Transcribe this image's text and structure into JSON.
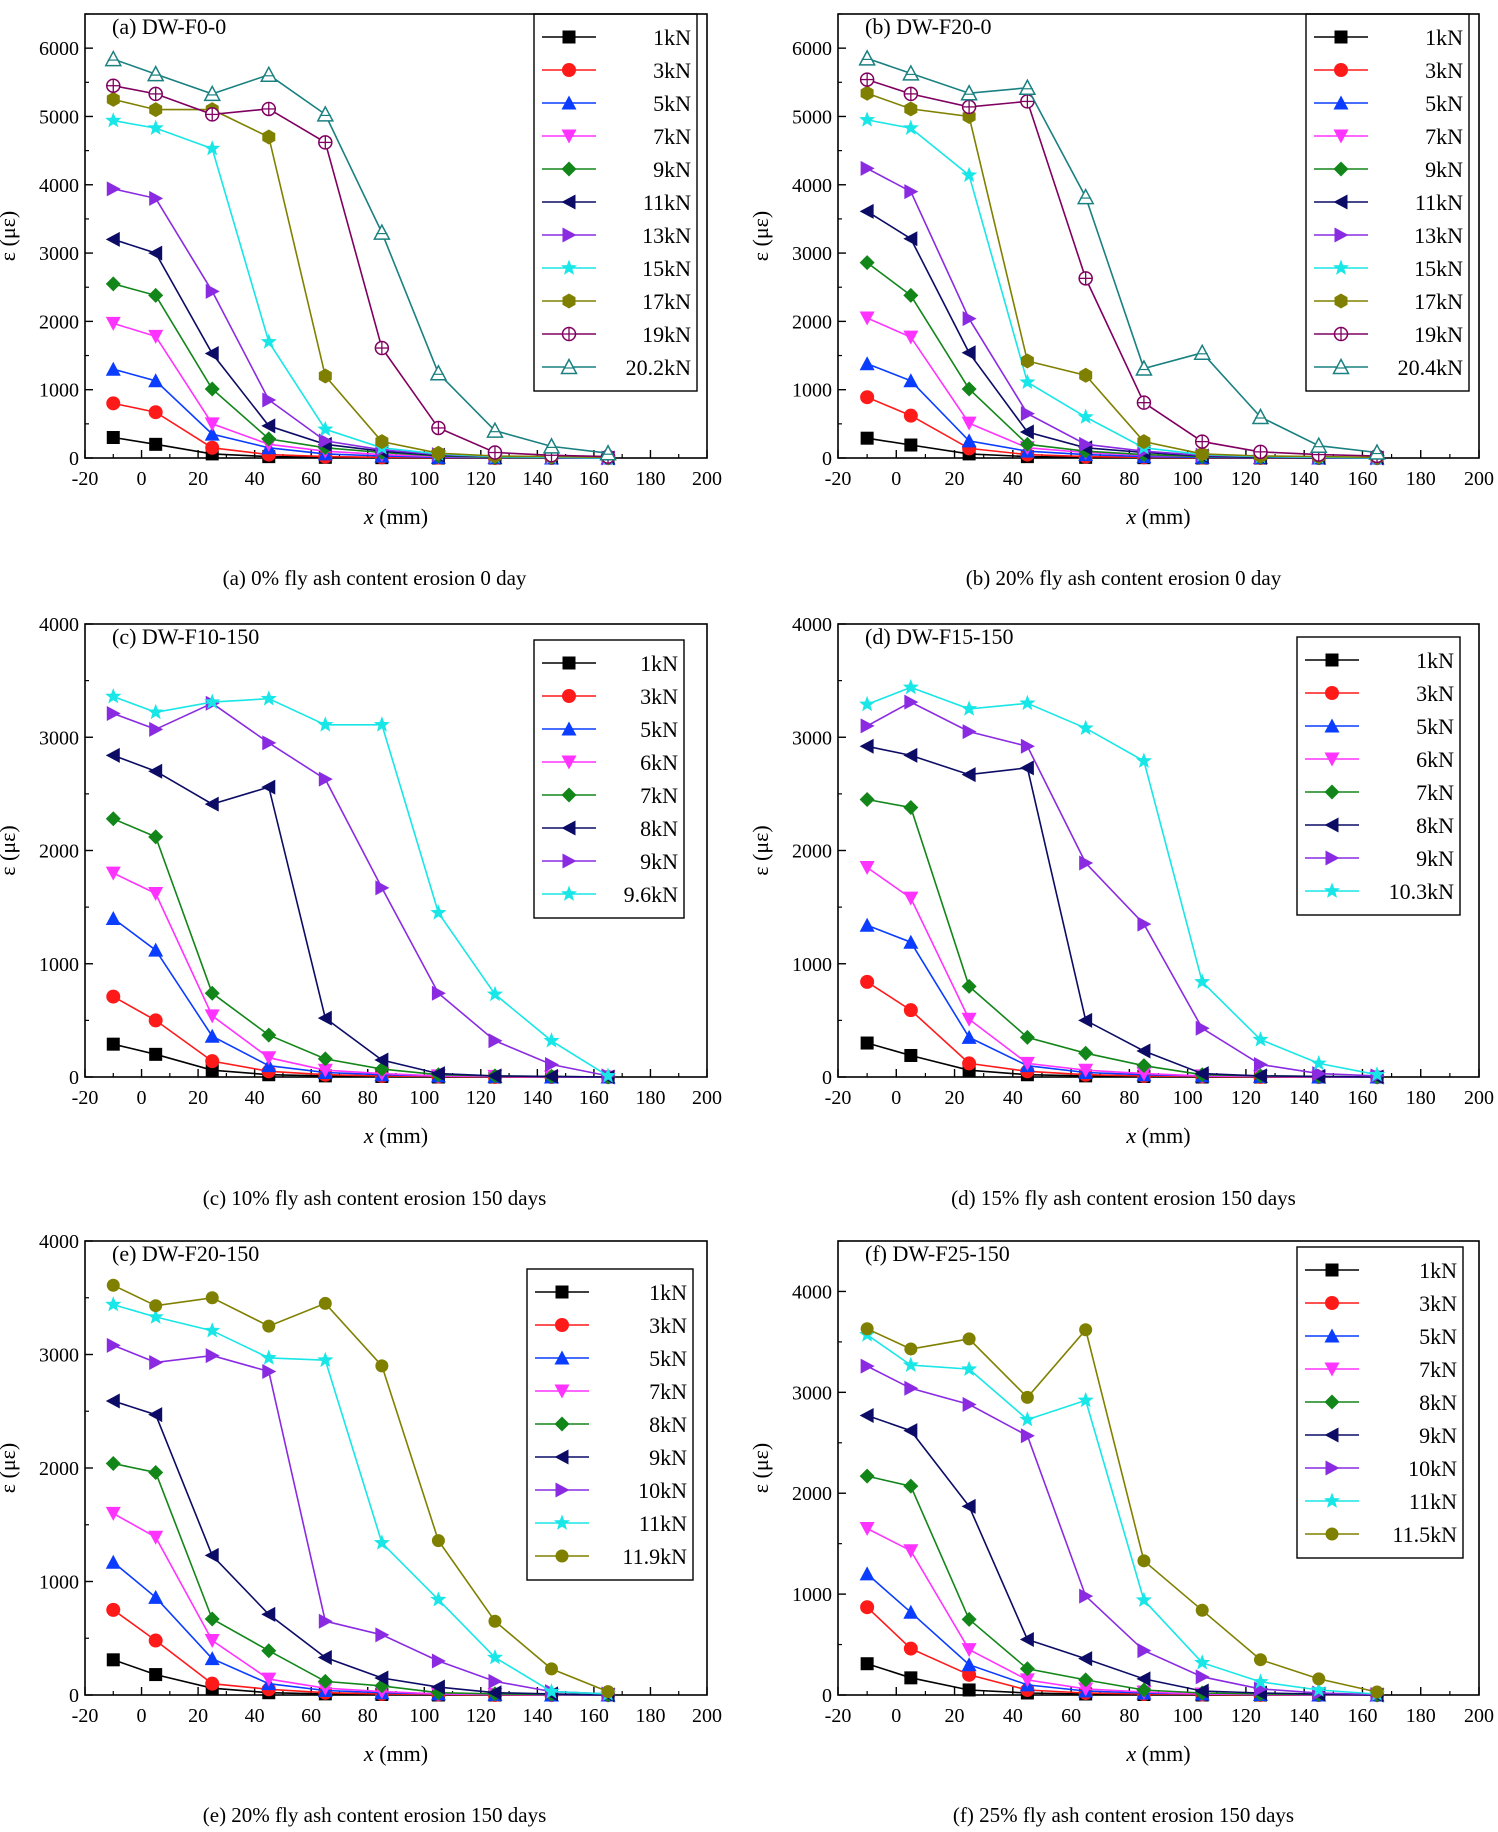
{
  "chart_data": [
    {
      "type": "line",
      "title": "(a)  DW-F0-0",
      "caption": "(a) 0% fly ash content erosion 0 day",
      "xlabel": "x (mm)",
      "ylabel": "ε  (με)",
      "xlim": [
        -20,
        200
      ],
      "ylim": [
        0,
        6500
      ],
      "xticks": [
        -20,
        0,
        20,
        40,
        60,
        80,
        100,
        120,
        140,
        160,
        180,
        200
      ],
      "yticks": [
        0,
        1000,
        2000,
        3000,
        4000,
        5000,
        6000
      ],
      "x": [
        -10,
        5,
        25,
        45,
        65,
        85,
        105,
        125,
        145,
        165
      ],
      "series": [
        {
          "name": "1kN",
          "values": [
            300,
            200,
            60,
            20,
            10,
            5,
            0,
            0,
            0,
            0
          ]
        },
        {
          "name": "3kN",
          "values": [
            800,
            670,
            150,
            50,
            20,
            10,
            5,
            0,
            0,
            0
          ]
        },
        {
          "name": "5kN",
          "values": [
            1300,
            1130,
            350,
            150,
            60,
            30,
            10,
            5,
            0,
            0
          ]
        },
        {
          "name": "7kN",
          "values": [
            1970,
            1780,
            500,
            200,
            100,
            50,
            20,
            10,
            5,
            0
          ]
        },
        {
          "name": "9kN",
          "values": [
            2550,
            2380,
            1010,
            280,
            150,
            80,
            30,
            10,
            5,
            0
          ]
        },
        {
          "name": "11kN",
          "values": [
            3200,
            3000,
            1530,
            470,
            200,
            100,
            40,
            20,
            10,
            0
          ]
        },
        {
          "name": "13kN",
          "values": [
            3940,
            3800,
            2440,
            850,
            250,
            120,
            50,
            20,
            10,
            0
          ]
        },
        {
          "name": "15kN",
          "values": [
            4940,
            4830,
            4530,
            1700,
            420,
            150,
            60,
            20,
            10,
            0
          ]
        },
        {
          "name": "17kN",
          "values": [
            5250,
            5100,
            5100,
            4700,
            1200,
            240,
            70,
            30,
            20,
            10
          ]
        },
        {
          "name": "19kN",
          "values": [
            5450,
            5330,
            5030,
            5110,
            4620,
            1610,
            440,
            80,
            40,
            20
          ]
        },
        {
          "name": "20.2kN",
          "values": [
            5840,
            5620,
            5330,
            5610,
            5030,
            3300,
            1240,
            400,
            170,
            70
          ]
        }
      ]
    },
    {
      "type": "line",
      "title": "(b) DW-F20-0",
      "caption": "(b) 20% fly ash content erosion 0 day",
      "xlabel": "x (mm)",
      "ylabel": "ε  (με)",
      "xlim": [
        -20,
        200
      ],
      "ylim": [
        0,
        6500
      ],
      "xticks": [
        -20,
        0,
        20,
        40,
        60,
        80,
        100,
        120,
        140,
        160,
        180,
        200
      ],
      "yticks": [
        0,
        1000,
        2000,
        3000,
        4000,
        5000,
        6000
      ],
      "x": [
        -10,
        5,
        25,
        45,
        65,
        85,
        105,
        125,
        145,
        165
      ],
      "series": [
        {
          "name": "1kN",
          "values": [
            290,
            190,
            60,
            20,
            10,
            5,
            0,
            0,
            0,
            0
          ]
        },
        {
          "name": "3kN",
          "values": [
            890,
            620,
            140,
            50,
            20,
            10,
            5,
            0,
            0,
            0
          ]
        },
        {
          "name": "5kN",
          "values": [
            1380,
            1130,
            250,
            100,
            50,
            20,
            10,
            5,
            0,
            0
          ]
        },
        {
          "name": "7kN",
          "values": [
            2050,
            1770,
            510,
            150,
            80,
            40,
            20,
            10,
            5,
            0
          ]
        },
        {
          "name": "9kN",
          "values": [
            2860,
            2380,
            1010,
            200,
            100,
            50,
            20,
            10,
            5,
            0
          ]
        },
        {
          "name": "11kN",
          "values": [
            3610,
            3210,
            1540,
            380,
            150,
            80,
            30,
            10,
            5,
            0
          ]
        },
        {
          "name": "13kN",
          "values": [
            4240,
            3900,
            2040,
            650,
            200,
            100,
            40,
            20,
            10,
            0
          ]
        },
        {
          "name": "15kN",
          "values": [
            4950,
            4830,
            4140,
            1110,
            600,
            150,
            50,
            20,
            10,
            0
          ]
        },
        {
          "name": "17kN",
          "values": [
            5340,
            5110,
            5000,
            1420,
            1210,
            240,
            60,
            30,
            20,
            10
          ]
        },
        {
          "name": "19kN",
          "values": [
            5540,
            5330,
            5140,
            5220,
            2630,
            810,
            240,
            90,
            50,
            30
          ]
        },
        {
          "name": "20.4kN",
          "values": [
            5850,
            5630,
            5340,
            5420,
            3820,
            1310,
            1540,
            600,
            180,
            80
          ]
        }
      ]
    },
    {
      "type": "line",
      "title": "(c) DW-F10-150",
      "caption": "(c) 10% fly ash content erosion 150 days",
      "xlabel": "x (mm)",
      "ylabel": "ε  (με)",
      "xlim": [
        -20,
        200
      ],
      "ylim": [
        0,
        4000
      ],
      "xticks": [
        -20,
        0,
        20,
        40,
        60,
        80,
        100,
        120,
        140,
        160,
        180,
        200
      ],
      "yticks": [
        0,
        1000,
        2000,
        3000,
        4000
      ],
      "x": [
        -10,
        5,
        25,
        45,
        65,
        85,
        105,
        125,
        145,
        165
      ],
      "series": [
        {
          "name": "1kN",
          "values": [
            290,
            200,
            60,
            20,
            10,
            5,
            0,
            0,
            0,
            0
          ]
        },
        {
          "name": "3kN",
          "values": [
            710,
            500,
            140,
            50,
            20,
            10,
            5,
            0,
            0,
            0
          ]
        },
        {
          "name": "5kN",
          "values": [
            1400,
            1120,
            360,
            100,
            40,
            20,
            10,
            5,
            0,
            0
          ]
        },
        {
          "name": "6kN",
          "values": [
            1800,
            1620,
            540,
            170,
            60,
            30,
            10,
            5,
            0,
            0
          ]
        },
        {
          "name": "7kN",
          "values": [
            2280,
            2120,
            740,
            370,
            160,
            70,
            20,
            10,
            5,
            0
          ]
        },
        {
          "name": "8kN",
          "values": [
            2840,
            2700,
            2410,
            2560,
            520,
            150,
            30,
            10,
            5,
            0
          ]
        },
        {
          "name": "9kN",
          "values": [
            3210,
            3070,
            3300,
            2950,
            2630,
            1670,
            740,
            320,
            110,
            10
          ]
        },
        {
          "name": "9.6kN",
          "values": [
            3360,
            3220,
            3310,
            3340,
            3110,
            3110,
            1450,
            730,
            320,
            10
          ]
        }
      ]
    },
    {
      "type": "line",
      "title": "(d) DW-F15-150",
      "caption": "(d) 15% fly ash content erosion 150 days",
      "xlabel": "x (mm)",
      "ylabel": "ε  (με)",
      "xlim": [
        -20,
        200
      ],
      "ylim": [
        0,
        4000
      ],
      "xticks": [
        -20,
        0,
        20,
        40,
        60,
        80,
        100,
        120,
        140,
        160,
        180,
        200
      ],
      "yticks": [
        0,
        1000,
        2000,
        3000,
        4000
      ],
      "x": [
        -10,
        5,
        25,
        45,
        65,
        85,
        105,
        125,
        145,
        165
      ],
      "series": [
        {
          "name": "1kN",
          "values": [
            300,
            190,
            60,
            20,
            10,
            5,
            0,
            0,
            0,
            0
          ]
        },
        {
          "name": "3kN",
          "values": [
            840,
            590,
            120,
            50,
            20,
            10,
            5,
            0,
            0,
            0
          ]
        },
        {
          "name": "5kN",
          "values": [
            1340,
            1190,
            350,
            100,
            40,
            20,
            10,
            5,
            0,
            0
          ]
        },
        {
          "name": "6kN",
          "values": [
            1850,
            1580,
            510,
            120,
            60,
            30,
            10,
            5,
            0,
            0
          ]
        },
        {
          "name": "7kN",
          "values": [
            2450,
            2380,
            800,
            350,
            210,
            100,
            20,
            10,
            5,
            0
          ]
        },
        {
          "name": "8kN",
          "values": [
            2920,
            2840,
            2670,
            2730,
            500,
            230,
            30,
            10,
            5,
            0
          ]
        },
        {
          "name": "9kN",
          "values": [
            3100,
            3310,
            3050,
            2920,
            1890,
            1350,
            430,
            110,
            30,
            10
          ]
        },
        {
          "name": "10.3kN",
          "values": [
            3290,
            3440,
            3250,
            3300,
            3080,
            2790,
            840,
            330,
            120,
            20
          ]
        }
      ]
    },
    {
      "type": "line",
      "title": "(e) DW-F20-150",
      "caption": "(e) 20% fly ash content erosion 150 days",
      "xlabel": "x (mm)",
      "ylabel": "ε  (με)",
      "xlim": [
        -20,
        200
      ],
      "ylim": [
        0,
        4000
      ],
      "xticks": [
        -20,
        0,
        20,
        40,
        60,
        80,
        100,
        120,
        140,
        160,
        180,
        200
      ],
      "yticks": [
        0,
        1000,
        2000,
        3000,
        4000
      ],
      "x": [
        -10,
        5,
        25,
        45,
        65,
        85,
        105,
        125,
        145,
        165
      ],
      "series": [
        {
          "name": "1kN",
          "values": [
            310,
            180,
            60,
            20,
            10,
            5,
            0,
            0,
            0,
            0
          ]
        },
        {
          "name": "3kN",
          "values": [
            750,
            480,
            100,
            50,
            20,
            10,
            5,
            0,
            0,
            0
          ]
        },
        {
          "name": "5kN",
          "values": [
            1170,
            860,
            320,
            100,
            40,
            20,
            10,
            5,
            0,
            0
          ]
        },
        {
          "name": "7kN",
          "values": [
            1600,
            1390,
            480,
            140,
            60,
            30,
            10,
            5,
            0,
            0
          ]
        },
        {
          "name": "8kN",
          "values": [
            2040,
            1960,
            670,
            390,
            120,
            80,
            20,
            10,
            5,
            0
          ]
        },
        {
          "name": "9kN",
          "values": [
            2590,
            2470,
            1230,
            710,
            330,
            150,
            70,
            20,
            10,
            0
          ]
        },
        {
          "name": "10kN",
          "values": [
            3080,
            2930,
            2990,
            2850,
            650,
            530,
            300,
            120,
            30,
            10
          ]
        },
        {
          "name": "11kN",
          "values": [
            3440,
            3330,
            3210,
            2970,
            2950,
            1340,
            840,
            330,
            30,
            10
          ]
        },
        {
          "name": "11.9kN",
          "values": [
            3610,
            3430,
            3500,
            3250,
            3450,
            2900,
            1360,
            650,
            230,
            30
          ]
        }
      ]
    },
    {
      "type": "line",
      "title": "(f)  DW-F25-150",
      "caption": "(f) 25% fly ash content erosion 150 days",
      "xlabel": "x (mm)",
      "ylabel": "ε  (με)",
      "xlim": [
        -20,
        200
      ],
      "ylim": [
        0,
        4500
      ],
      "xticks": [
        -20,
        0,
        20,
        40,
        60,
        80,
        100,
        120,
        140,
        160,
        180,
        200
      ],
      "yticks": [
        0,
        1000,
        2000,
        3000,
        4000
      ],
      "x": [
        -10,
        5,
        25,
        45,
        65,
        85,
        105,
        125,
        145,
        165
      ],
      "series": [
        {
          "name": "1kN",
          "values": [
            310,
            170,
            50,
            20,
            10,
            5,
            0,
            0,
            0,
            0
          ]
        },
        {
          "name": "3kN",
          "values": [
            870,
            460,
            200,
            50,
            20,
            10,
            5,
            0,
            0,
            0
          ]
        },
        {
          "name": "5kN",
          "values": [
            1200,
            820,
            300,
            100,
            40,
            20,
            10,
            5,
            0,
            0
          ]
        },
        {
          "name": "7kN",
          "values": [
            1650,
            1430,
            450,
            150,
            60,
            30,
            10,
            5,
            0,
            0
          ]
        },
        {
          "name": "8kN",
          "values": [
            2170,
            2070,
            750,
            260,
            150,
            50,
            20,
            10,
            5,
            0
          ]
        },
        {
          "name": "9kN",
          "values": [
            2770,
            2620,
            1870,
            550,
            360,
            160,
            40,
            20,
            10,
            0
          ]
        },
        {
          "name": "10kN",
          "values": [
            3260,
            3040,
            2880,
            2570,
            980,
            440,
            180,
            60,
            20,
            5
          ]
        },
        {
          "name": "11kN",
          "values": [
            3570,
            3270,
            3230,
            2730,
            2920,
            940,
            320,
            130,
            50,
            10
          ]
        },
        {
          "name": "11.5kN",
          "values": [
            3630,
            3430,
            3530,
            2950,
            3620,
            1330,
            840,
            350,
            160,
            30
          ]
        }
      ]
    }
  ],
  "style": {
    "colors": {
      "1kN": "#000000",
      "3kN": "#ff1a1a",
      "5kN": "#0033ff",
      "6kN": "#ff33ff",
      "7kN_a": "#ff33ff",
      "9kN_a": "#138c13",
      "11kN_a": "#0c0c66",
      "13kN_a": "#8a2be2",
      "15kN_a": "#19e6e6",
      "17kN_a": "#808000",
      "19kN_a": "#800060",
      "top_a": "#1a8080"
    }
  }
}
